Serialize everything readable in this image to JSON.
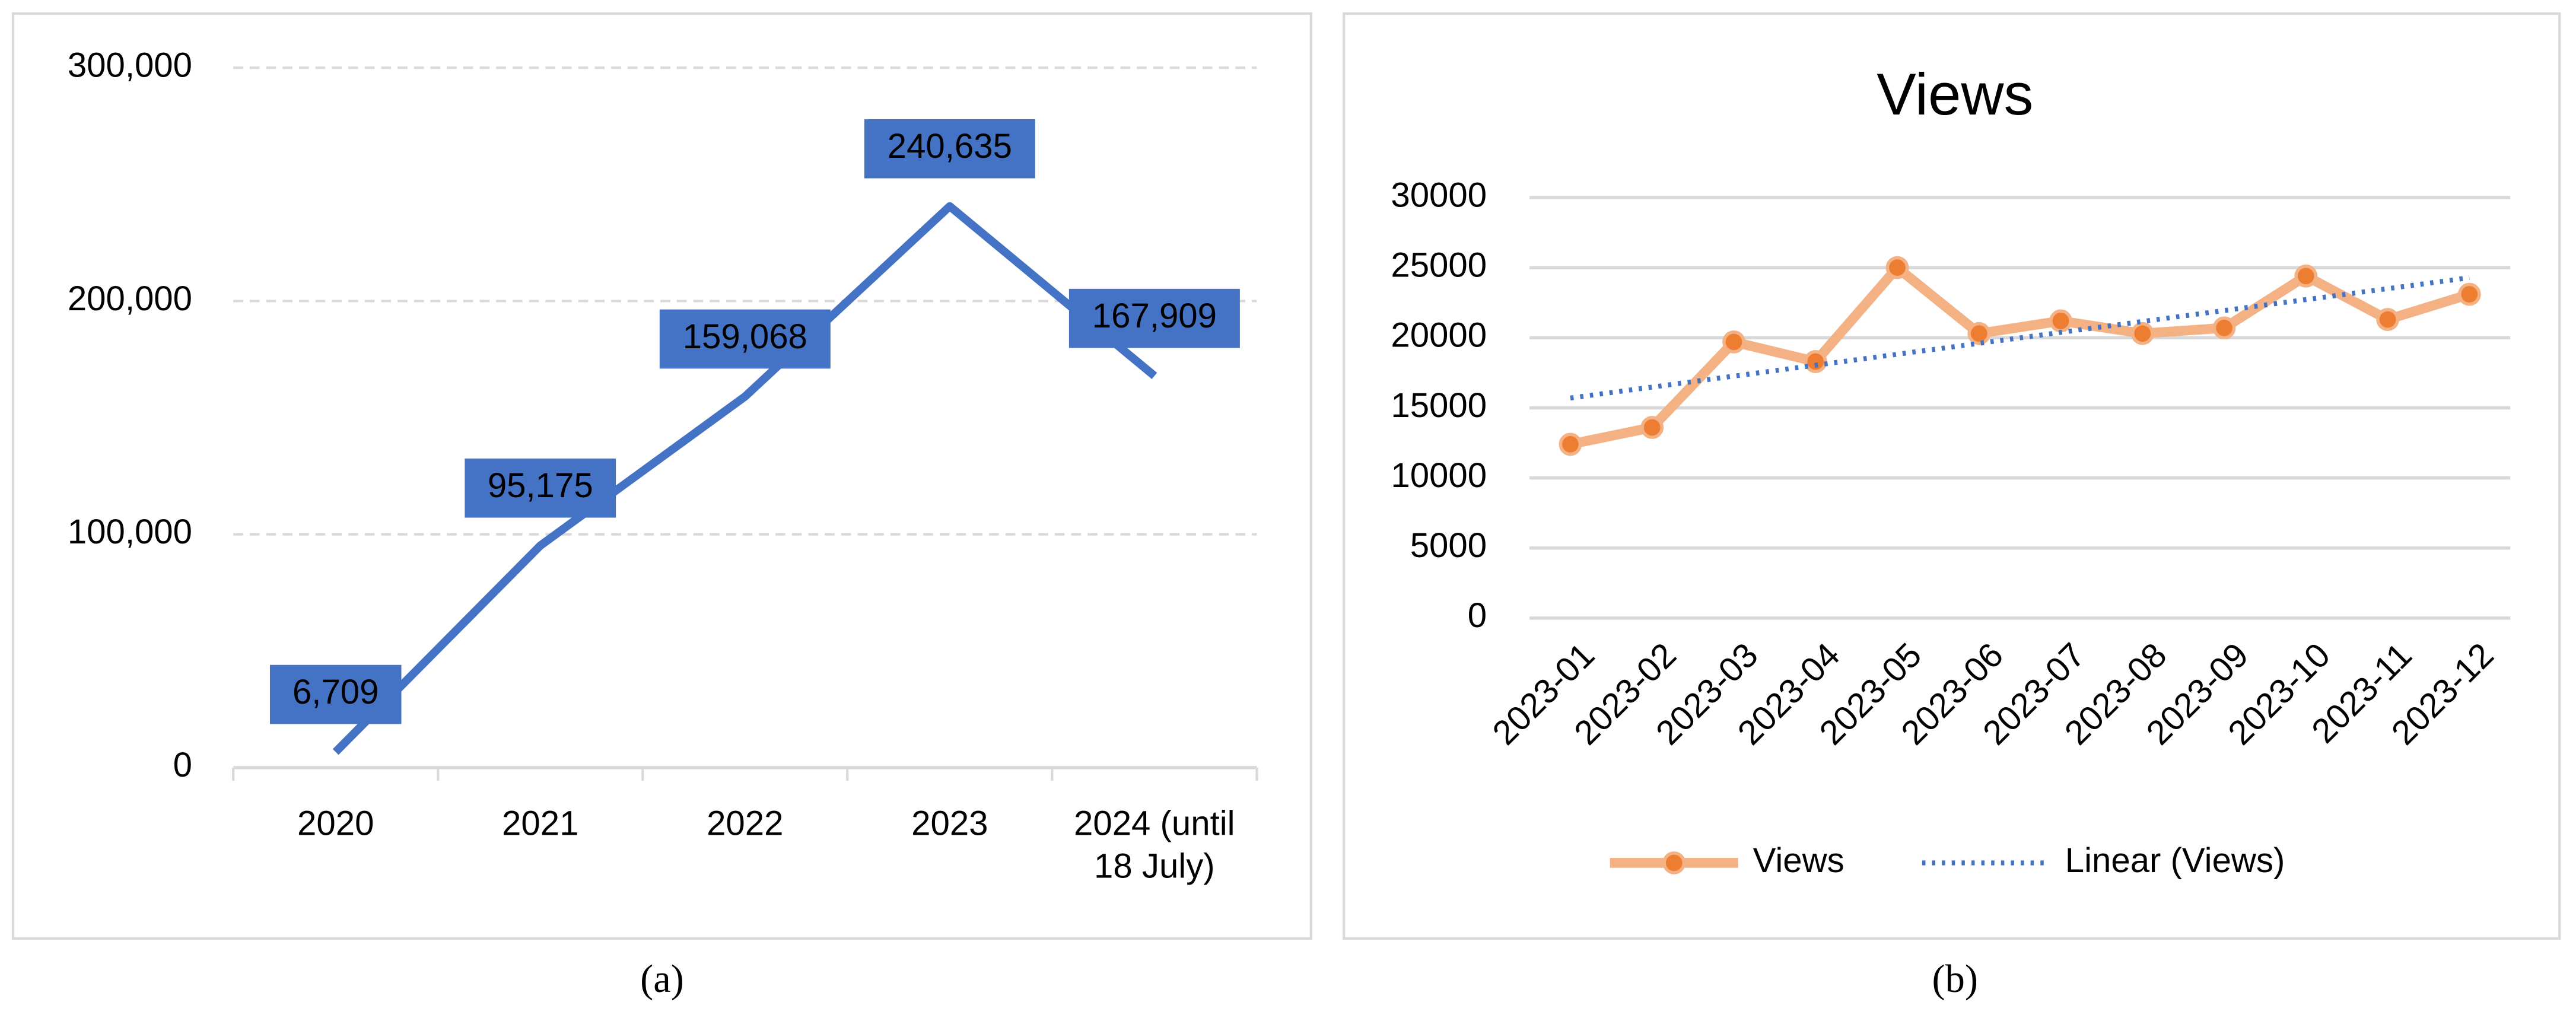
{
  "chart_data": [
    {
      "type": "line",
      "caption": "(a)",
      "categories": [
        "2020",
        "2021",
        "2022",
        "2023",
        "2024 (until 18 July)"
      ],
      "values": [
        6709,
        95175,
        159068,
        240635,
        167909
      ],
      "value_labels": [
        "6,709",
        "95,175",
        "159,068",
        "240,635",
        "167,909"
      ],
      "color": "#4472c4",
      "ylim": [
        0,
        300000
      ],
      "yticks": [
        0,
        {
          "value": 100000,
          "label": "100,000"
        },
        {
          "value": 200000,
          "label": "200,000"
        },
        {
          "value": 300000,
          "label": "300,000"
        }
      ],
      "grid": true,
      "grid_style": "dashed"
    },
    {
      "type": "line",
      "caption": "(b)",
      "title": "Views",
      "categories": [
        "2023-01",
        "2023-02",
        "2023-03",
        "2023-04",
        "2023-05",
        "2023-06",
        "2023-07",
        "2023-08",
        "2023-09",
        "2023-10",
        "2023-11",
        "2023-12"
      ],
      "series": [
        {
          "name": "Views",
          "color": "#f4b183",
          "marker_color": "#ed7d31",
          "style": "solid",
          "values": [
            12400,
            13600,
            19700,
            18300,
            25000,
            20300,
            21200,
            20300,
            20700,
            24400,
            21300,
            23100
          ]
        },
        {
          "name": "Linear (Views)",
          "color": "#4472c4",
          "style": "dotted",
          "values": [
            15700,
            16480,
            17260,
            18040,
            18820,
            19600,
            20380,
            21160,
            21940,
            22720,
            23500,
            24280
          ]
        }
      ],
      "ylim": [
        0,
        30000
      ],
      "yticks": [
        0,
        5000,
        10000,
        15000,
        20000,
        25000,
        30000
      ],
      "grid": true,
      "grid_style": "solid",
      "legend": "bottom"
    }
  ]
}
